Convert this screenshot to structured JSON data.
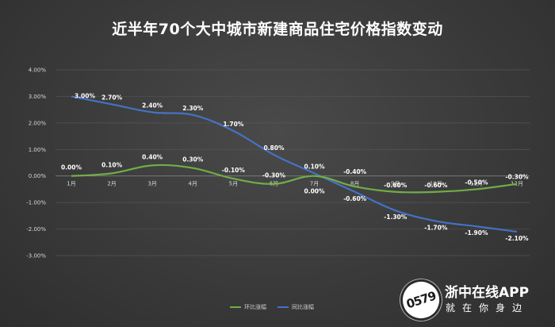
{
  "title": "近半年70个大中城市新建商品住宅价格指数变动",
  "brand": {
    "badge_text": "0579",
    "name": "浙中在线APP",
    "slogan": "就在你身边"
  },
  "chart_data": {
    "type": "line",
    "title": "近半年70个大中城市新建商品住宅价格指数变动",
    "categories": [
      "1月",
      "2月",
      "3月",
      "4月",
      "5月",
      "6月",
      "7月",
      "8月",
      "9月",
      "10月",
      "11月",
      "12月"
    ],
    "y_ticks": [
      "4.00%",
      "3.00%",
      "2.00%",
      "1.00%",
      "0.00%",
      "-1.00%",
      "-2.00%",
      "-3.00%"
    ],
    "ylim": [
      -3,
      4
    ],
    "grid": true,
    "legend_position": "bottom",
    "series": [
      {
        "name": "环比涨幅",
        "color": "#70ad47",
        "values": [
          0.0,
          0.1,
          0.4,
          0.3,
          -0.1,
          -0.3,
          0.0,
          -0.4,
          -0.6,
          -0.6,
          -0.5,
          -0.3
        ],
        "labels": [
          "0.00%",
          "0.10%",
          "0.40%",
          "0.30%",
          "-0.10%",
          "-0.30%",
          "0.00%",
          "-0.40%",
          "-0.60%",
          "-0.60%",
          "-0.50%",
          "-0.30%"
        ]
      },
      {
        "name": "同比涨幅",
        "color": "#4472c4",
        "values": [
          3.0,
          2.7,
          2.4,
          2.3,
          1.7,
          0.8,
          0.1,
          -0.6,
          -1.3,
          -1.7,
          -1.9,
          -2.1
        ],
        "labels": [
          "3.00%",
          "2.70%",
          "2.40%",
          "2.30%",
          "1.70%",
          "0.80%",
          "0.10%",
          "-0.60%",
          "-1.30%",
          "-1.70%",
          "-1.90%",
          "-2.10%"
        ]
      }
    ]
  }
}
